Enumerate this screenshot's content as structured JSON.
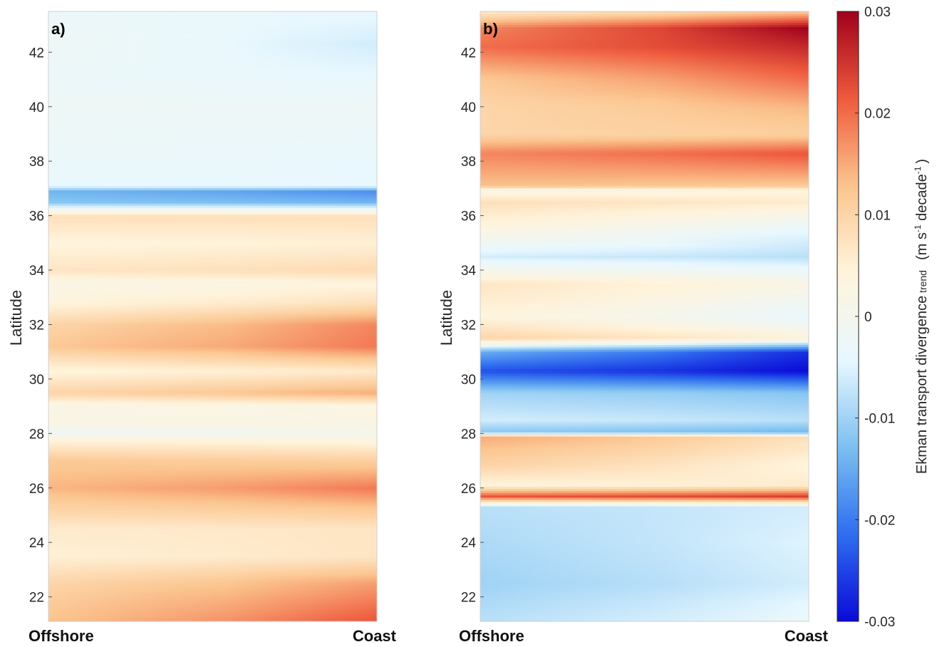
{
  "chart_data": {
    "type": "heatmap",
    "colorbar": {
      "label_main": "Ekman transport divergence",
      "label_sub": "trend",
      "label_units": "(m s",
      "label_exp": "-1",
      "label_units2": " decade",
      "label_exp2": "-1",
      "label_close": ")",
      "range": [
        -0.03,
        0.03
      ],
      "ticks": [
        0.03,
        0.02,
        0.01,
        0,
        -0.01,
        -0.02,
        -0.03
      ],
      "tick_labels": [
        "0.03",
        "0.02",
        "0.01",
        "0",
        "-0.01",
        "-0.02",
        "-0.03"
      ],
      "colormap": [
        "#0a0ad8",
        "#2f6ef0",
        "#7cc0f0",
        "#e8f8ff",
        "#fff4dc",
        "#fbc58e",
        "#ef5a3c",
        "#a0001c"
      ]
    },
    "panels": [
      {
        "label": "a)",
        "ylabel": "Latitude",
        "x_left": "Offshore",
        "x_right": "Coast",
        "ylim": [
          21.1,
          43.5
        ],
        "yticks": [
          22,
          24,
          26,
          28,
          30,
          32,
          34,
          36,
          38,
          40,
          42
        ],
        "profile": [
          [
            21.1,
            0.013,
            0.022
          ],
          [
            22.5,
            0.01,
            0.016
          ],
          [
            23.5,
            0.005,
            0.007
          ],
          [
            24.5,
            0.006,
            0.007
          ],
          [
            25.2,
            0.01,
            0.012
          ],
          [
            26.0,
            0.014,
            0.019
          ],
          [
            27.0,
            0.012,
            0.011
          ],
          [
            27.8,
            0.004,
            0.003
          ],
          [
            28.05,
            -0.002,
            0.0
          ],
          [
            28.3,
            0.002,
            0.002
          ],
          [
            29.0,
            0.002,
            0.003
          ],
          [
            29.5,
            0.01,
            0.015
          ],
          [
            30.3,
            0.004,
            0.006
          ],
          [
            31.2,
            0.012,
            0.019
          ],
          [
            32.0,
            0.01,
            0.018
          ],
          [
            32.8,
            0.004,
            0.008
          ],
          [
            33.5,
            0.002,
            0.004
          ],
          [
            34.0,
            0.007,
            0.009
          ],
          [
            35.0,
            0.004,
            0.005
          ],
          [
            36.0,
            0.008,
            0.008
          ],
          [
            36.5,
            -0.012,
            -0.014
          ],
          [
            36.9,
            -0.014,
            -0.018
          ],
          [
            37.1,
            -0.004,
            -0.004
          ],
          [
            38.0,
            -0.003,
            -0.004
          ],
          [
            40.0,
            -0.002,
            -0.002
          ],
          [
            41.0,
            -0.003,
            -0.004
          ],
          [
            42.3,
            -0.002,
            -0.006
          ],
          [
            43.5,
            -0.003,
            -0.004
          ]
        ]
      },
      {
        "label": "b)",
        "ylabel": "Latitude",
        "x_left": "Offshore",
        "x_right": "Coast",
        "ylim": [
          21.1,
          43.5
        ],
        "yticks": [
          22,
          24,
          26,
          28,
          30,
          32,
          34,
          36,
          38,
          40,
          42
        ],
        "profile": [
          [
            21.1,
            -0.008,
            -0.003
          ],
          [
            22.5,
            -0.01,
            -0.006
          ],
          [
            24.0,
            -0.009,
            -0.005
          ],
          [
            25.3,
            -0.008,
            -0.006
          ],
          [
            25.7,
            0.022,
            0.024
          ],
          [
            26.1,
            0.004,
            0.006
          ],
          [
            26.8,
            0.01,
            0.004
          ],
          [
            27.9,
            0.015,
            0.008
          ],
          [
            28.05,
            -0.012,
            -0.014
          ],
          [
            28.5,
            -0.006,
            -0.008
          ],
          [
            29.5,
            -0.01,
            -0.012
          ],
          [
            30.3,
            -0.024,
            -0.03
          ],
          [
            31.0,
            -0.015,
            -0.027
          ],
          [
            31.5,
            0.01,
            0.004
          ],
          [
            32.3,
            0.004,
            -0.004
          ],
          [
            33.5,
            0.007,
            0.002
          ],
          [
            34.5,
            -0.006,
            -0.008
          ],
          [
            35.5,
            0.003,
            -0.004
          ],
          [
            36.5,
            0.008,
            0.006
          ],
          [
            36.95,
            0.002,
            0.004
          ],
          [
            37.1,
            0.013,
            0.012
          ],
          [
            38.3,
            0.018,
            0.022
          ],
          [
            39.0,
            0.01,
            0.011
          ],
          [
            40.0,
            0.01,
            0.014
          ],
          [
            41.0,
            0.012,
            0.02
          ],
          [
            42.2,
            0.02,
            0.026
          ],
          [
            42.9,
            0.018,
            0.03
          ],
          [
            43.5,
            0.006,
            0.012
          ]
        ]
      }
    ]
  }
}
